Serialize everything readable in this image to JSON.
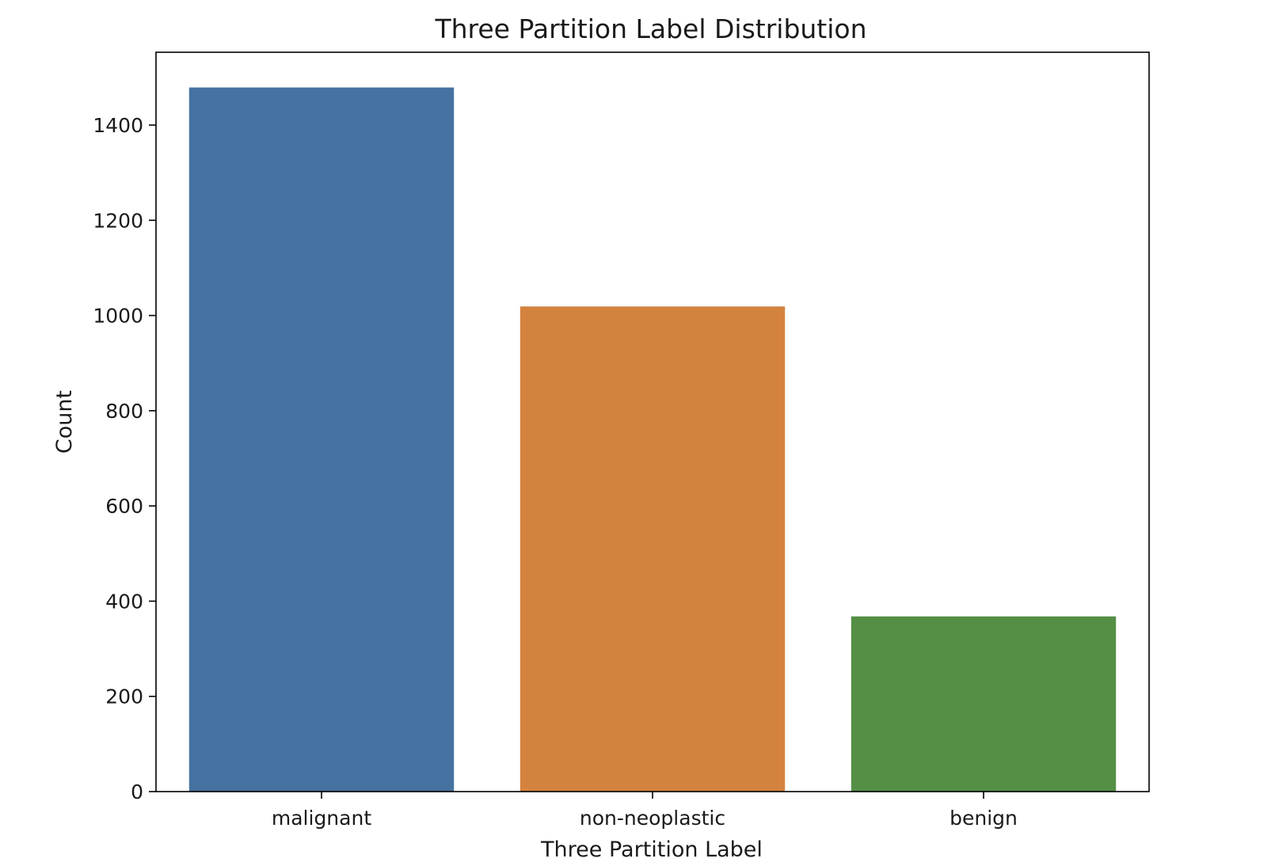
{
  "chart_data": {
    "type": "bar",
    "title": "Three Partition Label Distribution",
    "xlabel": "Three Partition Label",
    "ylabel": "Count",
    "categories": [
      "malignant",
      "non-neoplastic",
      "benign"
    ],
    "values": [
      1479,
      1019,
      368
    ],
    "colors": [
      "#4572a0",
      "#d4833f",
      "#548f45"
    ],
    "ylim": [
      0,
      1553
    ],
    "yticks": [
      0,
      200,
      400,
      600,
      800,
      1000,
      1200,
      1400
    ],
    "grid": false,
    "legend": "none"
  }
}
